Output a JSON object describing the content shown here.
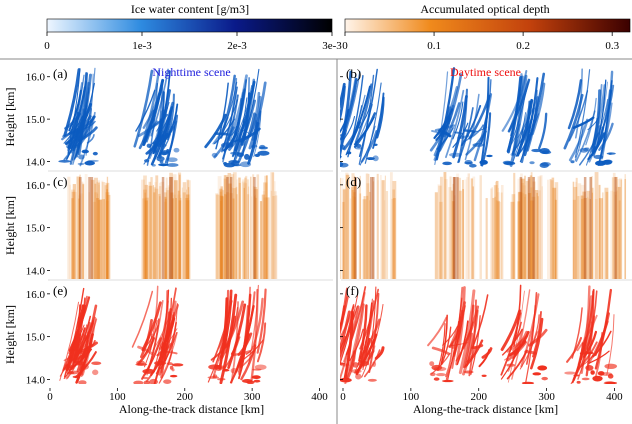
{
  "colors": {
    "ice_scale": [
      "#ffffff",
      "#2e8be0",
      "#0a1a8a",
      "#000000"
    ],
    "od_scale": [
      "#fff4ea",
      "#f08a1c",
      "#c2410c",
      "#3b0000"
    ],
    "mask": "#f0301e",
    "night_title": "#2222dd",
    "day_title": "#ee1111",
    "ice_mark": "#0b5bc0",
    "od_mark": "#e8821e"
  },
  "chart_data": [
    {
      "type": "heatmap",
      "colorbar": {
        "title": "Ice water content [g/m3]",
        "range": [
          0,
          0.003
        ],
        "ticks": [
          "0",
          "1e-3",
          "2e-3",
          "3e-3"
        ],
        "tick_values": [
          0,
          0.001,
          0.002,
          0.003
        ]
      }
    },
    {
      "type": "heatmap",
      "colorbar": {
        "title": "Accumulated optical depth",
        "range": [
          0,
          0.32
        ],
        "ticks": [
          "0",
          "0.1",
          "0.2",
          "0.3"
        ],
        "tick_values": [
          0,
          0.1,
          0.2,
          0.3
        ]
      }
    }
  ],
  "panels": [
    {
      "label": "(a)",
      "title": "Nighttime scene",
      "field": "ice",
      "scene": "night"
    },
    {
      "label": "(b)",
      "title": "Daytime scene",
      "field": "ice",
      "scene": "day"
    },
    {
      "label": "(c)",
      "field": "od",
      "scene": "night"
    },
    {
      "label": "(d)",
      "field": "od",
      "scene": "day"
    },
    {
      "label": "(e)",
      "field": "mask",
      "scene": "night"
    },
    {
      "label": "(f)",
      "field": "mask",
      "scene": "day"
    }
  ],
  "axes": {
    "xlabel": "Along-the-track distance [km]",
    "ylabel": "Height [km]",
    "xlim": [
      0,
      420
    ],
    "ylim": [
      13.8,
      16.3
    ],
    "xticks": [
      0,
      100,
      200,
      300,
      400
    ],
    "yticks": [
      14.0,
      15.0,
      16.0
    ],
    "xtick_labels": [
      "0",
      "100",
      "200",
      "300",
      "400"
    ],
    "ytick_labels": [
      "14.0",
      "15.0",
      "16.0"
    ]
  },
  "cloud_groups": {
    "night": [
      [
        40,
        70
      ],
      [
        150,
        190
      ],
      [
        260,
        320
      ]
    ],
    "day": [
      [
        0,
        60
      ],
      [
        150,
        220
      ],
      [
        260,
        300
      ],
      [
        350,
        400
      ]
    ]
  }
}
